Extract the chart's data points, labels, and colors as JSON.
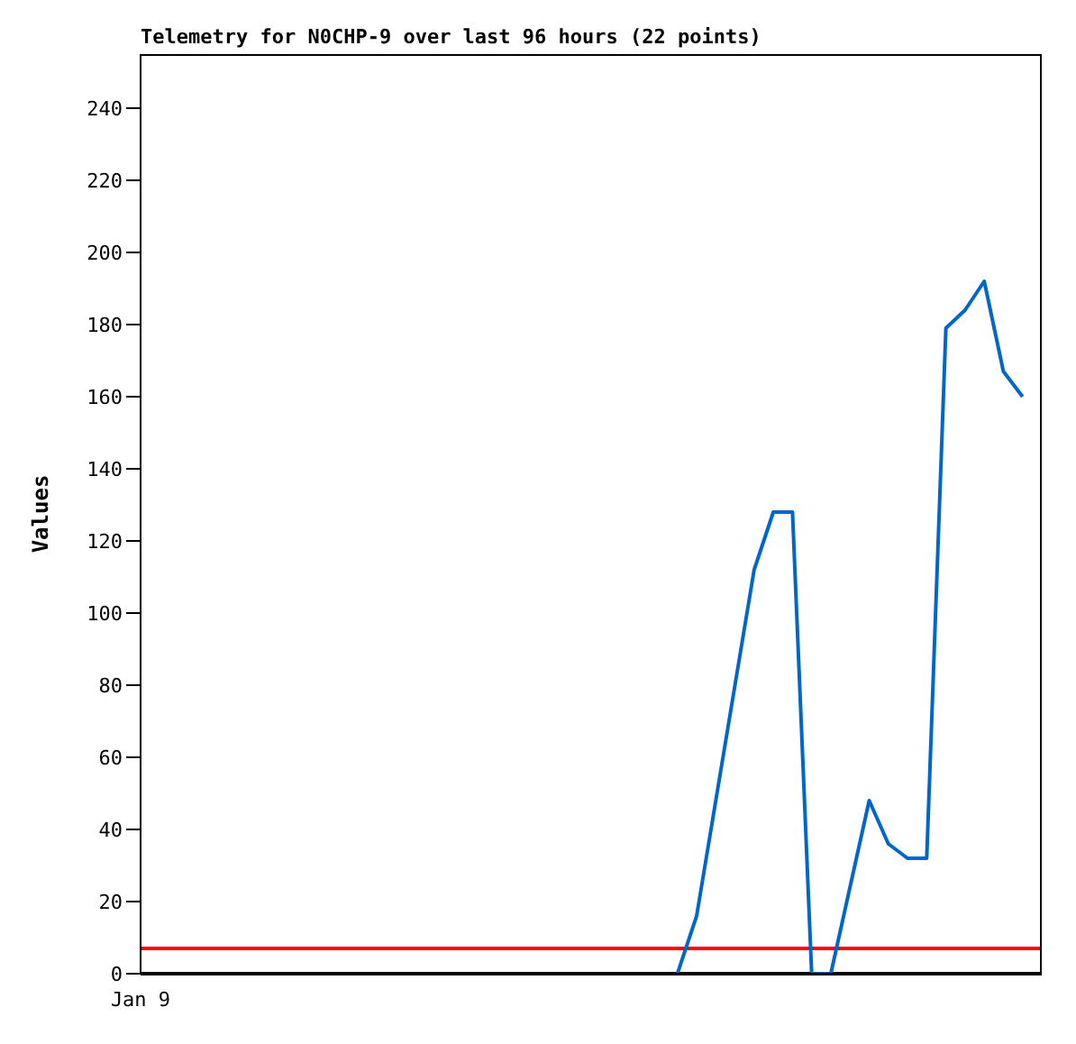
{
  "chart_data": {
    "type": "line",
    "title": "Telemetry for N0CHP-9 over last 96 hours (22 points)",
    "ylabel": "Values",
    "ylim": [
      0,
      255
    ],
    "yticks": [
      0,
      20,
      40,
      60,
      80,
      100,
      120,
      140,
      160,
      180,
      200,
      220,
      240
    ],
    "annotations": [
      "Jan 9"
    ],
    "grid": false,
    "legend": false,
    "marker": "none",
    "line_style": "solid",
    "categories": [
      null,
      null,
      null,
      null,
      null,
      null,
      null,
      null,
      null,
      null,
      null,
      null,
      null,
      null,
      null,
      null,
      null,
      null,
      null,
      null,
      null,
      null,
      null,
      null,
      null,
      null,
      null,
      null,
      null,
      null,
      null,
      null,
      null,
      null,
      null,
      null,
      null,
      null,
      null,
      null,
      null,
      null,
      null,
      null,
      null,
      null,
      null,
      null
    ],
    "ref_lines": [
      {
        "axis": "y",
        "value": 0,
        "color": "#000000"
      },
      {
        "axis": "y",
        "value": 7,
        "color": "#ff0000"
      }
    ],
    "series": [
      {
        "color": "#0066cc",
        "values": [
          null,
          null,
          null,
          null,
          null,
          null,
          null,
          null,
          null,
          null,
          null,
          null,
          null,
          null,
          null,
          null,
          null,
          null,
          null,
          null,
          null,
          null,
          null,
          null,
          null,
          null,
          null,
          null,
          0,
          16,
          48,
          80,
          112,
          128,
          128,
          0,
          0,
          24,
          48,
          36,
          32,
          32,
          179,
          184,
          192,
          167,
          160,
          null
        ]
      }
    ]
  }
}
